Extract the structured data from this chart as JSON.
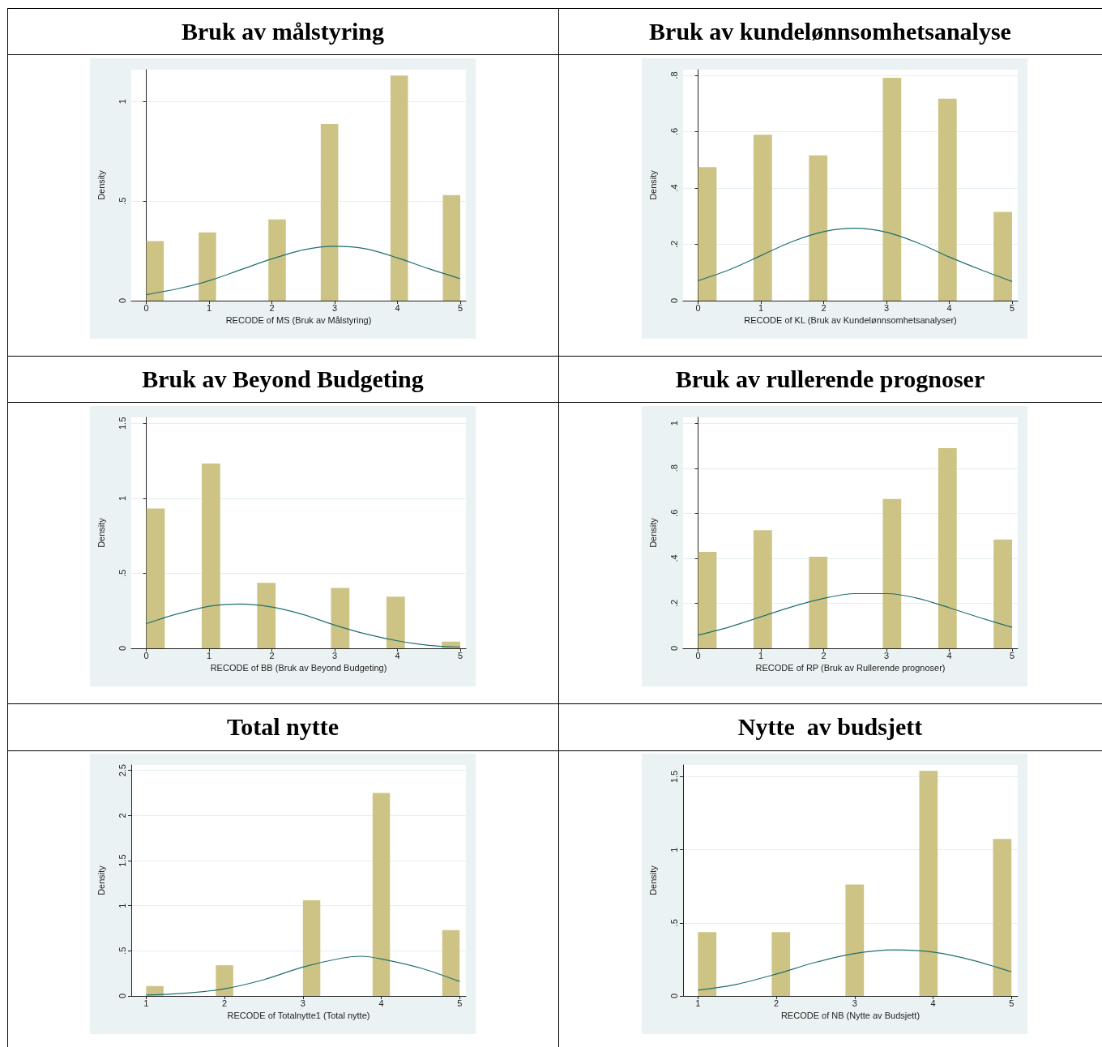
{
  "chart_data": [
    {
      "type": "histogram",
      "title": "Bruk av målstyring",
      "xlabel": "RECODE of MS (Bruk av Målstyring)",
      "ylabel": "Density",
      "bins": [
        0,
        0.278,
        0.556,
        0.833,
        1.111,
        1.389,
        1.667,
        1.944,
        2.222,
        2.5,
        2.778,
        3.056,
        3.333,
        3.611,
        3.889,
        4.167,
        4.444,
        4.722,
        5
      ],
      "xlim": [
        -0.24,
        5.09
      ],
      "xticks": [
        0,
        1,
        2,
        3,
        4,
        5
      ],
      "ylim": [
        0,
        1.16
      ],
      "yticks": [
        0,
        {
          "value": 0.5,
          "label": ".5"
        },
        1
      ],
      "grid": "y",
      "series": [
        {
          "color": "#cdc384",
          "values": [
            0.299,
            0,
            0,
            0.343,
            0,
            0,
            0,
            0.408,
            0,
            0,
            0.887,
            0,
            0,
            0,
            1.13,
            0,
            0,
            0.53
          ]
        },
        {
          "type": "line",
          "color": "#1f6f6f",
          "x": [
            0,
            0.5,
            1,
            1.5,
            2,
            2.5,
            3,
            3.5,
            4,
            4.5,
            5
          ],
          "values": [
            0.03,
            0.06,
            0.1,
            0.155,
            0.21,
            0.255,
            0.273,
            0.26,
            0.215,
            0.16,
            0.11
          ]
        }
      ]
    },
    {
      "type": "histogram",
      "title": "Bruk av kundelønnsomhetsanalyse",
      "xlabel": "RECODE of KL (Bruk av Kundelønnsomhetsanalyser)",
      "ylabel": "Density",
      "bins": [
        0,
        0.294,
        0.588,
        0.882,
        1.176,
        1.471,
        1.765,
        2.059,
        2.353,
        2.647,
        2.941,
        3.235,
        3.529,
        3.824,
        4.118,
        4.412,
        4.706,
        5
      ],
      "xlim": [
        -0.24,
        5.09
      ],
      "xticks": [
        0,
        1,
        2,
        3,
        4,
        5
      ],
      "ylim": [
        0,
        0.82
      ],
      "yticks": [
        0,
        {
          "value": 0.2,
          "label": ".2"
        },
        {
          "value": 0.4,
          "label": ".4"
        },
        {
          "value": 0.6,
          "label": ".6"
        },
        {
          "value": 0.8,
          "label": ".8"
        }
      ],
      "grid": "y",
      "series": [
        {
          "color": "#cdc384",
          "values": [
            0.474,
            0,
            0,
            0.589,
            0,
            0,
            0.516,
            0,
            0,
            0,
            0.791,
            0,
            0,
            0.717,
            0,
            0,
            0.315
          ]
        },
        {
          "type": "line",
          "color": "#1f6f6f",
          "x": [
            0,
            0.5,
            1,
            1.5,
            2,
            2.5,
            3,
            3.5,
            4,
            4.5,
            5
          ],
          "values": [
            0.071,
            0.11,
            0.16,
            0.21,
            0.245,
            0.257,
            0.243,
            0.205,
            0.155,
            0.11,
            0.068
          ]
        }
      ]
    },
    {
      "type": "histogram",
      "title": "Bruk av Beyond Budgeting",
      "xlabel": "RECODE of BB (Bruk av Beyond Budgeting)",
      "ylabel": "Density",
      "bins": [
        0,
        0.294,
        0.588,
        0.882,
        1.176,
        1.471,
        1.765,
        2.059,
        2.353,
        2.647,
        2.941,
        3.235,
        3.529,
        3.824,
        4.118,
        4.412,
        4.706,
        5
      ],
      "xlim": [
        -0.24,
        5.09
      ],
      "xticks": [
        0,
        1,
        2,
        3,
        4,
        5
      ],
      "ylim": [
        0,
        1.54
      ],
      "yticks": [
        0,
        {
          "value": 0.5,
          "label": ".5"
        },
        1,
        1.5
      ],
      "grid": "y",
      "series": [
        {
          "color": "#cdc384",
          "values": [
            0.932,
            0,
            0,
            1.232,
            0,
            0,
            0.436,
            0,
            0,
            0,
            0.402,
            0,
            0,
            0.345,
            0,
            0,
            0.045
          ]
        },
        {
          "type": "line",
          "color": "#1f6f6f",
          "x": [
            0,
            0.5,
            1,
            1.5,
            2,
            2.5,
            3,
            3.5,
            4,
            4.5,
            5
          ],
          "values": [
            0.165,
            0.23,
            0.28,
            0.295,
            0.275,
            0.225,
            0.155,
            0.095,
            0.05,
            0.02,
            0.008
          ]
        }
      ]
    },
    {
      "type": "histogram",
      "title": "Bruk av rullerende prognoser",
      "xlabel": "RECODE of RP (Bruk av Rullerende prognoser)",
      "ylabel": "Density",
      "bins": [
        0,
        0.294,
        0.588,
        0.882,
        1.176,
        1.471,
        1.765,
        2.059,
        2.353,
        2.647,
        2.941,
        3.235,
        3.529,
        3.824,
        4.118,
        4.412,
        4.706,
        5
      ],
      "xlim": [
        -0.24,
        5.09
      ],
      "xticks": [
        0,
        1,
        2,
        3,
        4,
        5
      ],
      "ylim": [
        0,
        1.026
      ],
      "yticks": [
        0,
        {
          "value": 0.2,
          "label": ".2"
        },
        {
          "value": 0.4,
          "label": ".4"
        },
        {
          "value": 0.6,
          "label": ".6"
        },
        {
          "value": 0.8,
          "label": ".8"
        },
        1
      ],
      "grid": "y",
      "series": [
        {
          "color": "#cdc384",
          "values": [
            0.428,
            0,
            0,
            0.525,
            0,
            0,
            0.407,
            0,
            0,
            0,
            0.663,
            0,
            0,
            0.889,
            0,
            0,
            0.483
          ]
        },
        {
          "type": "line",
          "color": "#1f6f6f",
          "x": [
            0,
            0.5,
            1,
            1.5,
            2,
            2.5,
            3,
            3.5,
            4,
            4.5,
            5
          ],
          "values": [
            0.059,
            0.095,
            0.14,
            0.185,
            0.222,
            0.243,
            0.243,
            0.222,
            0.18,
            0.135,
            0.093
          ]
        }
      ]
    },
    {
      "type": "histogram",
      "title": "Total nytte",
      "xlabel": "RECODE of Totalnytte1 (Total nytte)",
      "ylabel": "Density",
      "bins": [
        1,
        1.222,
        1.444,
        1.667,
        1.889,
        2.111,
        2.333,
        2.556,
        2.778,
        3,
        3.222,
        3.444,
        3.667,
        3.889,
        4.111,
        4.333,
        4.556,
        4.778,
        5
      ],
      "xlim": [
        0.81,
        5.08
      ],
      "xticks": [
        1,
        2,
        3,
        4,
        5
      ],
      "ylim": [
        0,
        2.56
      ],
      "yticks": [
        0,
        {
          "value": 0.5,
          "label": ".5"
        },
        1,
        1.5,
        2,
        2.5
      ],
      "grid": "y",
      "series": [
        {
          "color": "#cdc384",
          "values": [
            0.11,
            0,
            0,
            0,
            0.34,
            0,
            0,
            0,
            0,
            1.06,
            0,
            0,
            0,
            2.25,
            0,
            0,
            0,
            0.73
          ]
        },
        {
          "type": "line",
          "color": "#1f6f6f",
          "x": [
            1,
            1.5,
            2,
            2.5,
            3,
            3.5,
            3.75,
            4,
            4.5,
            5
          ],
          "values": [
            0.01,
            0.03,
            0.08,
            0.18,
            0.32,
            0.42,
            0.44,
            0.41,
            0.31,
            0.16
          ]
        }
      ]
    },
    {
      "type": "histogram",
      "title": "Nytte  av budsjett",
      "xlabel": "RECODE of NB (Nytte av Budsjett)",
      "ylabel": "Density",
      "bins": [
        1,
        1.235,
        1.471,
        1.706,
        1.941,
        2.176,
        2.412,
        2.647,
        2.882,
        3.118,
        3.353,
        3.588,
        3.824,
        4.059,
        4.294,
        4.529,
        4.765,
        5
      ],
      "xlim": [
        0.81,
        5.08
      ],
      "xticks": [
        1,
        2,
        3,
        4,
        5
      ],
      "ylim": [
        0,
        1.58
      ],
      "yticks": [
        0,
        {
          "value": 0.5,
          "label": ".5"
        },
        1,
        1.5
      ],
      "grid": "y",
      "series": [
        {
          "color": "#cdc384",
          "values": [
            0.436,
            0,
            0,
            0,
            0.436,
            0,
            0,
            0,
            0.762,
            0,
            0,
            0,
            1.54,
            0,
            0,
            0,
            1.074
          ]
        },
        {
          "type": "line",
          "color": "#1f6f6f",
          "x": [
            1,
            1.5,
            2,
            2.5,
            3,
            3.5,
            4,
            4.5,
            5
          ],
          "values": [
            0.04,
            0.08,
            0.15,
            0.23,
            0.29,
            0.315,
            0.3,
            0.245,
            0.165
          ]
        }
      ]
    }
  ]
}
